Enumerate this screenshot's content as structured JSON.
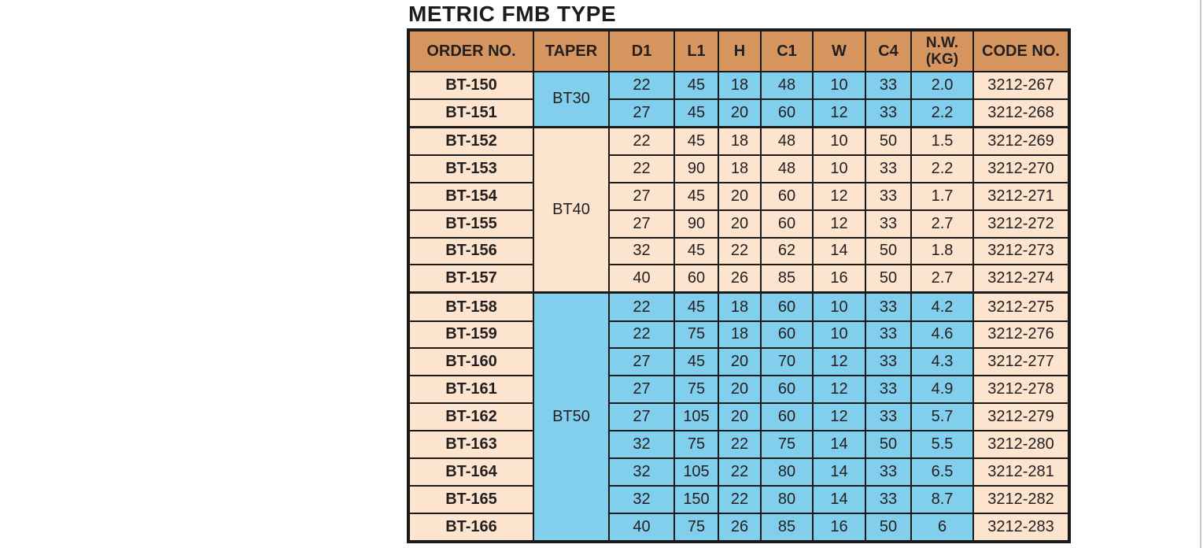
{
  "title": "METRIC FMB TYPE",
  "colors": {
    "header_bg": "#D79660",
    "peach_bg": "#FCE4CF",
    "blue_bg": "#82CEED",
    "border": "#1A1A1A",
    "text": "#231F20"
  },
  "chart_data": {
    "type": "table",
    "title": "METRIC FMB TYPE",
    "columns": [
      "ORDER NO.",
      "TAPER",
      "D1",
      "L1",
      "H",
      "C1",
      "W",
      "C4",
      "N.W.\n(KG)",
      "CODE NO."
    ],
    "groups": [
      {
        "taper": "BT30",
        "highlight": true,
        "rows": [
          {
            "order_no": "BT-150",
            "values": [
              "22",
              "45",
              "18",
              "48",
              "10",
              "33",
              "2.0"
            ],
            "code_no": "3212-267"
          },
          {
            "order_no": "BT-151",
            "values": [
              "27",
              "45",
              "20",
              "60",
              "12",
              "33",
              "2.2"
            ],
            "code_no": "3212-268"
          }
        ]
      },
      {
        "taper": "BT40",
        "highlight": false,
        "rows": [
          {
            "order_no": "BT-152",
            "values": [
              "22",
              "45",
              "18",
              "48",
              "10",
              "50",
              "1.5"
            ],
            "code_no": "3212-269"
          },
          {
            "order_no": "BT-153",
            "values": [
              "22",
              "90",
              "18",
              "48",
              "10",
              "33",
              "2.2"
            ],
            "code_no": "3212-270"
          },
          {
            "order_no": "BT-154",
            "values": [
              "27",
              "45",
              "20",
              "60",
              "12",
              "33",
              "1.7"
            ],
            "code_no": "3212-271"
          },
          {
            "order_no": "BT-155",
            "values": [
              "27",
              "90",
              "20",
              "60",
              "12",
              "33",
              "2.7"
            ],
            "code_no": "3212-272"
          },
          {
            "order_no": "BT-156",
            "values": [
              "32",
              "45",
              "22",
              "62",
              "14",
              "50",
              "1.8"
            ],
            "code_no": "3212-273"
          },
          {
            "order_no": "BT-157",
            "values": [
              "40",
              "60",
              "26",
              "85",
              "16",
              "50",
              "2.7"
            ],
            "code_no": "3212-274"
          }
        ]
      },
      {
        "taper": "BT50",
        "highlight": true,
        "rows": [
          {
            "order_no": "BT-158",
            "values": [
              "22",
              "45",
              "18",
              "60",
              "10",
              "33",
              "4.2"
            ],
            "code_no": "3212-275"
          },
          {
            "order_no": "BT-159",
            "values": [
              "22",
              "75",
              "18",
              "60",
              "10",
              "33",
              "4.6"
            ],
            "code_no": "3212-276"
          },
          {
            "order_no": "BT-160",
            "values": [
              "27",
              "45",
              "20",
              "70",
              "12",
              "33",
              "4.3"
            ],
            "code_no": "3212-277"
          },
          {
            "order_no": "BT-161",
            "values": [
              "27",
              "75",
              "20",
              "60",
              "12",
              "33",
              "4.9"
            ],
            "code_no": "3212-278"
          },
          {
            "order_no": "BT-162",
            "values": [
              "27",
              "105",
              "20",
              "60",
              "12",
              "33",
              "5.7"
            ],
            "code_no": "3212-279"
          },
          {
            "order_no": "BT-163",
            "values": [
              "32",
              "75",
              "22",
              "75",
              "14",
              "50",
              "5.5"
            ],
            "code_no": "3212-280"
          },
          {
            "order_no": "BT-164",
            "values": [
              "32",
              "105",
              "22",
              "80",
              "14",
              "33",
              "6.5"
            ],
            "code_no": "3212-281"
          },
          {
            "order_no": "BT-165",
            "values": [
              "32",
              "150",
              "22",
              "80",
              "14",
              "33",
              "8.7"
            ],
            "code_no": "3212-282"
          },
          {
            "order_no": "BT-166",
            "values": [
              "40",
              "75",
              "26",
              "85",
              "16",
              "50",
              "6"
            ],
            "code_no": "3212-283"
          }
        ]
      }
    ]
  }
}
